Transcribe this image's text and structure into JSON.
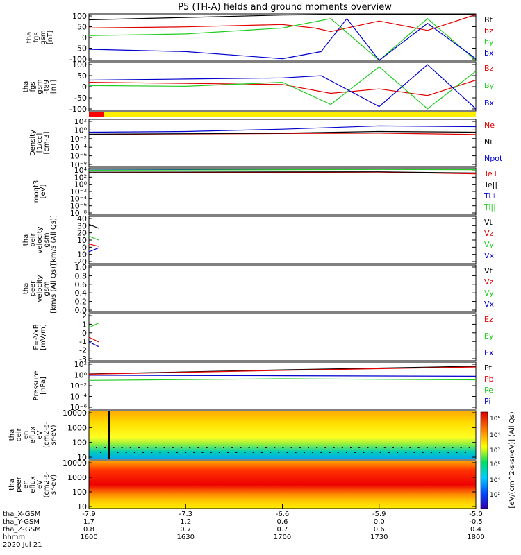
{
  "title": "P5 (TH-A) fields and ground moments overview",
  "colors": {
    "black": "#000000",
    "red": "#e00000",
    "green": "#22cc22",
    "blue": "#0000cc",
    "yellow": "#ffee00",
    "bar_red": "#ff0000"
  },
  "panels": [
    {
      "id": "p1",
      "ylabel": [
        "tha",
        "fgs",
        "gsm",
        "[nT]"
      ],
      "ticks": [
        "100",
        "50",
        "0",
        "-50",
        "-100"
      ],
      "legend": [
        {
          "text": "Bt",
          "color": "black"
        },
        {
          "text": "bz",
          "color": "red"
        },
        {
          "text": "by",
          "color": "green"
        },
        {
          "text": "bx",
          "color": "blue"
        }
      ]
    },
    {
      "id": "p2",
      "ylabel": [
        "tha",
        "fgs",
        "gsm",
        "-t89",
        "[nT]"
      ],
      "ticks": [
        "100",
        "50",
        "0",
        "-50",
        "-100"
      ],
      "legend": [
        {
          "text": "Bz",
          "color": "red"
        },
        {
          "text": "By",
          "color": "green"
        },
        {
          "text": "Bx",
          "color": "blue"
        }
      ]
    },
    {
      "id": "p3",
      "ylabel": [
        "Density",
        "[1/cc]",
        "[cm-3]"
      ],
      "ticks": [
        "10²",
        "10⁰",
        "10⁻²",
        "10⁻⁴",
        "10⁻⁶",
        "10⁻⁸"
      ],
      "legend": [
        {
          "text": "Ne",
          "color": "red"
        },
        {
          "text": "Ni",
          "color": "black"
        },
        {
          "text": "Npot",
          "color": "blue"
        }
      ]
    },
    {
      "id": "p4",
      "ylabel": [
        "moqt3",
        "[eV]"
      ],
      "ticks": [
        "10⁴",
        "10²",
        "10⁰",
        "10⁻²",
        "10⁻⁴",
        "10⁻⁶",
        "10⁻⁸"
      ],
      "legend": [
        {
          "text": "Te⊥",
          "color": "red"
        },
        {
          "text": "Te||",
          "color": "black"
        },
        {
          "text": "Ti⊥",
          "color": "blue"
        },
        {
          "text": "Ti||",
          "color": "green"
        }
      ]
    },
    {
      "id": "p5",
      "ylabel": [
        "tha",
        "peir",
        "velocity",
        "gsm",
        "[km/s (All Qs)]"
      ],
      "ticks": [
        "40",
        "30",
        "20",
        "10",
        "0",
        "-10",
        "-20"
      ],
      "legend": [
        {
          "text": "Vt",
          "color": "black"
        },
        {
          "text": "Vz",
          "color": "red"
        },
        {
          "text": "Vy",
          "color": "green"
        },
        {
          "text": "Vx",
          "color": "blue"
        }
      ]
    },
    {
      "id": "p6",
      "ylabel": [
        "tha",
        "peer",
        "velocity",
        "gsm",
        "[km/s (All Qs)]"
      ],
      "ticks": [
        "1.0",
        "0.8",
        "0.6",
        "0.4",
        "0.2",
        "0.0"
      ],
      "legend": [
        {
          "text": "Vt",
          "color": "black"
        },
        {
          "text": "Vz",
          "color": "red"
        },
        {
          "text": "Vy",
          "color": "green"
        },
        {
          "text": "Vx",
          "color": "blue"
        }
      ]
    },
    {
      "id": "p7",
      "ylabel": [
        "E=-VxB",
        "[mV/m]"
      ],
      "ticks": [
        "2",
        "1",
        "0",
        "-1",
        "-2",
        "-3"
      ],
      "legend": [
        {
          "text": "Ez",
          "color": "red"
        },
        {
          "text": "Ey",
          "color": "green"
        },
        {
          "text": "Ex",
          "color": "blue"
        }
      ]
    },
    {
      "id": "p8",
      "ylabel": [
        "Pressure",
        "[nPa]"
      ],
      "ticks": [
        "10²",
        "10⁰",
        "10⁻²",
        "10⁻⁴",
        "10⁻⁶"
      ],
      "legend": [
        {
          "text": "Pt",
          "color": "black"
        },
        {
          "text": "Pb",
          "color": "red"
        },
        {
          "text": "Pe",
          "color": "green"
        },
        {
          "text": "Pi",
          "color": "blue"
        }
      ]
    },
    {
      "id": "p9",
      "ylabel": [
        "tha",
        "peir",
        "en",
        "eflux",
        "eV",
        "(cm2-s-",
        "sr-eV)"
      ],
      "ticks": [
        "10000",
        "1000",
        "100",
        "10"
      ],
      "legend": []
    },
    {
      "id": "p10",
      "ylabel": [
        "tha",
        "peer",
        "en",
        "eflux",
        "eV",
        "(cm2-s-",
        "sr-eV)"
      ],
      "ticks": [
        "10000",
        "1000",
        "100",
        "10"
      ],
      "legend": []
    }
  ],
  "colorbar": {
    "ticks": [
      "10⁶",
      "10⁴",
      "10²",
      "10⁶",
      "10⁴",
      "10²"
    ],
    "label": "[eV/(cm^2-s-sr-eV)] (All Qs)"
  },
  "xaxis": {
    "rows": [
      {
        "label": "tha_X-GSM",
        "values": [
          "-7.9",
          "-7.3",
          "-6.6",
          "-5.9",
          "-5.0"
        ]
      },
      {
        "label": "tha_Y-GSM",
        "values": [
          "1.7",
          "1.2",
          "0.6",
          "0.0",
          "-0.5"
        ]
      },
      {
        "label": "tha_Z-GSM",
        "values": [
          "0.8",
          "0.7",
          "0.7",
          "0.6",
          "0.4"
        ]
      },
      {
        "label": "hhmm",
        "values": [
          "1600",
          "1630",
          "1700",
          "1730",
          "1800"
        ]
      }
    ],
    "date": "2020 Jul 21"
  },
  "chart_data": {
    "type": "line",
    "title": "P5 (TH-A) fields and ground moments overview",
    "x_time_hhmm": [
      "1600",
      "1630",
      "1700",
      "1730",
      "1800"
    ],
    "panels": [
      {
        "name": "tha fgs gsm [nT]",
        "ylim": [
          -100,
          100
        ],
        "series": [
          {
            "name": "Bt",
            "x": [
              "1600",
              "1630",
              "1700",
              "1715",
              "1730",
              "1745",
              "1800"
            ],
            "y": [
              75,
              85,
              95,
              100,
              100,
              100,
              100
            ]
          },
          {
            "name": "bz",
            "x": [
              "1600",
              "1630",
              "1700",
              "1710",
              "1715",
              "1730",
              "1745",
              "1800"
            ],
            "y": [
              40,
              45,
              55,
              40,
              25,
              70,
              30,
              100
            ]
          },
          {
            "name": "by",
            "x": [
              "1600",
              "1630",
              "1700",
              "1715",
              "1730",
              "1745",
              "1800"
            ],
            "y": [
              8,
              15,
              40,
              80,
              -100,
              80,
              -100
            ]
          },
          {
            "name": "bx",
            "x": [
              "1600",
              "1630",
              "1700",
              "1712",
              "1720",
              "1730",
              "1745",
              "1800"
            ],
            "y": [
              -50,
              -60,
              -90,
              -60,
              80,
              -100,
              60,
              -90
            ]
          }
        ]
      },
      {
        "name": "tha fgs gsm -t89 [nT]",
        "ylim": [
          -120,
          100
        ],
        "series": [
          {
            "name": "Bz",
            "x": [
              "1600",
              "1630",
              "1700",
              "1715",
              "1730",
              "1745",
              "1800"
            ],
            "y": [
              10,
              5,
              0,
              -40,
              -20,
              -50,
              20
            ]
          },
          {
            "name": "By",
            "x": [
              "1600",
              "1630",
              "1700",
              "1715",
              "1730",
              "1745",
              "1800"
            ],
            "y": [
              -5,
              -8,
              10,
              -90,
              80,
              -110,
              60
            ]
          },
          {
            "name": "Bx",
            "x": [
              "1600",
              "1630",
              "1700",
              "1712",
              "1730",
              "1745",
              "1800"
            ],
            "y": [
              20,
              25,
              30,
              40,
              -100,
              90,
              -110
            ]
          }
        ]
      },
      {
        "name": "Density [1/cc] [cm-3]",
        "yscale": "log",
        "ylim": [
          1e-08,
          1000.0
        ],
        "series": [
          {
            "name": "Ne",
            "x": [
              "1600",
              "1630",
              "1700",
              "1730",
              "1800"
            ],
            "y": [
              0.3,
              0.4,
              0.5,
              0.6,
              0.3
            ]
          },
          {
            "name": "Ni",
            "x": [
              "1600",
              "1630",
              "1700",
              "1730",
              "1800"
            ],
            "y": [
              0.35,
              0.45,
              0.6,
              1.5,
              1.0
            ]
          },
          {
            "name": "Npot",
            "x": [
              "1600",
              "1630",
              "1700",
              "1730",
              "1800"
            ],
            "y": [
              1.0,
              1.5,
              5,
              30,
              20
            ]
          }
        ]
      },
      {
        "name": "moqt3 [eV]",
        "yscale": "log",
        "ylim": [
          1e-08,
          10000.0
        ],
        "series": [
          {
            "name": "Te⊥",
            "x": [
              "1600",
              "1730",
              "1800"
            ],
            "y": [
              500,
              800,
              300
            ]
          },
          {
            "name": "Te||",
            "x": [
              "1600",
              "1730",
              "1800"
            ],
            "y": [
              800,
              1000,
              500
            ]
          },
          {
            "name": "Ti⊥",
            "x": [
              "1600",
              "1730",
              "1800"
            ],
            "y": [
              3000,
              5000,
              4000
            ]
          },
          {
            "name": "Ti||",
            "x": [
              "1600",
              "1730",
              "1800"
            ],
            "y": [
              2500,
              4000,
              3500
            ]
          }
        ]
      },
      {
        "name": "tha peir velocity gsm [km/s (All Qs)]",
        "ylim": [
          -20,
          40
        ],
        "series": [
          {
            "name": "Vt",
            "x": [
              "1600",
              "1603"
            ],
            "y": [
              30,
              25
            ]
          },
          {
            "name": "Vz",
            "x": [
              "1600",
              "1603"
            ],
            "y": [
              5,
              2
            ]
          },
          {
            "name": "Vy",
            "x": [
              "1600",
              "1603"
            ],
            "y": [
              15,
              10
            ]
          },
          {
            "name": "Vx",
            "x": [
              "1600",
              "1603"
            ],
            "y": [
              -5,
              0
            ]
          }
        ]
      },
      {
        "name": "tha peer velocity gsm [km/s (All Qs)]",
        "ylim": [
          0,
          1
        ],
        "series": []
      },
      {
        "name": "E=-VxB [mV/m]",
        "ylim": [
          -3,
          2
        ],
        "series": [
          {
            "name": "Ez",
            "x": [
              "1600",
              "1603"
            ],
            "y": [
              -0.5,
              -1
            ]
          },
          {
            "name": "Ey",
            "x": [
              "1600",
              "1603"
            ],
            "y": [
              0.5,
              1
            ]
          },
          {
            "name": "Ex",
            "x": [
              "1600",
              "1603"
            ],
            "y": [
              -1,
              -1.5
            ]
          }
        ]
      },
      {
        "name": "Pressure [nPa]",
        "yscale": "log",
        "ylim": [
          1e-06,
          100.0
        ],
        "series": [
          {
            "name": "Pt",
            "x": [
              "1600",
              "1700",
              "1800"
            ],
            "y": [
              1,
              5,
              20
            ]
          },
          {
            "name": "Pb",
            "x": [
              "1600",
              "1700",
              "1800"
            ],
            "y": [
              0.9,
              4,
              15
            ]
          },
          {
            "name": "Pe",
            "x": [
              "1600",
              "1700",
              "1800"
            ],
            "y": [
              0.08,
              0.15,
              0.1
            ]
          },
          {
            "name": "Pi",
            "x": [
              "1600",
              "1700",
              "1800"
            ],
            "y": [
              0.6,
              0.5,
              0.4
            ]
          }
        ]
      },
      {
        "name": "tha peir en eflux",
        "type": "heatmap",
        "yscale": "log",
        "ylim": [
          5,
          25000
        ],
        "zlim": [
          100.0,
          10000000.0
        ]
      },
      {
        "name": "tha peer en eflux",
        "type": "heatmap",
        "yscale": "log",
        "ylim": [
          5,
          25000
        ],
        "zlim": [
          100.0,
          10000000.0
        ]
      }
    ]
  }
}
